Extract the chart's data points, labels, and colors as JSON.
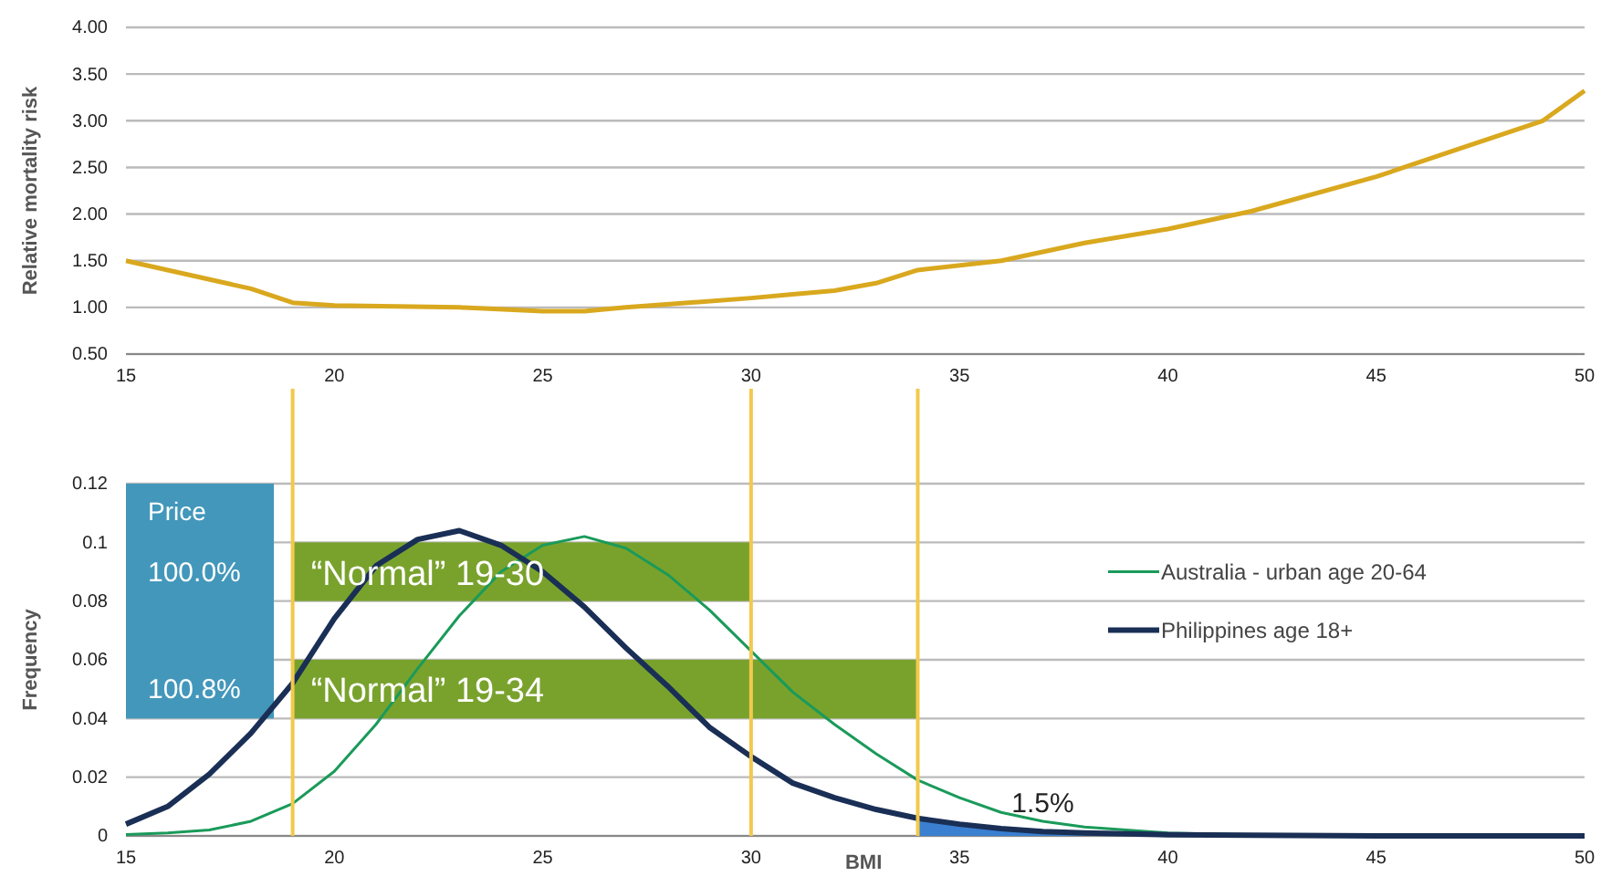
{
  "chart_data": [
    {
      "type": "line",
      "ylabel": "Relative mortality risk",
      "xlim": [
        15,
        50
      ],
      "xticks": [
        15,
        20,
        25,
        30,
        35,
        40,
        45,
        50
      ],
      "ylim": [
        0.5,
        4
      ],
      "yticks": [
        {
          "value": 0.5,
          "label": "0.50"
        },
        {
          "value": 1,
          "label": "1.00"
        },
        {
          "value": 1.5,
          "label": "1.50"
        },
        {
          "value": 2,
          "label": "2.00"
        },
        {
          "value": 2.5,
          "label": "2.50"
        },
        {
          "value": 3,
          "label": "3.00"
        },
        {
          "value": 3.5,
          "label": "3.50"
        },
        {
          "value": 4,
          "label": "4.00"
        }
      ],
      "grid": "y",
      "legend": false,
      "marker": "none",
      "series": [
        {
          "color": "#d9a81e",
          "x": [
            15,
            18,
            19,
            20,
            23,
            25,
            26,
            27,
            30,
            31,
            32,
            33,
            34,
            36,
            38,
            40,
            42,
            45,
            47,
            49,
            50
          ],
          "values": [
            1.5,
            1.2,
            1.05,
            1.02,
            1.0,
            0.96,
            0.96,
            1.0,
            1.1,
            1.14,
            1.18,
            1.26,
            1.4,
            1.5,
            1.69,
            1.84,
            2.03,
            2.4,
            2.7,
            3.0,
            3.32
          ]
        }
      ]
    },
    {
      "type": "line",
      "ylabel": "Frequency",
      "xlabel": "BMI",
      "xlim": [
        15,
        50
      ],
      "xticks": [
        15,
        20,
        25,
        30,
        35,
        40,
        45,
        50
      ],
      "ylim": [
        0,
        0.12
      ],
      "yticks": [
        0,
        0.02,
        0.04,
        0.06,
        0.08,
        0.1,
        0.12
      ],
      "grid": "y",
      "legend": "right",
      "marker": "none",
      "series": [
        {
          "type": "area",
          "color": "#3a7fd0",
          "x": [
            34,
            35,
            36,
            37,
            38,
            40,
            45,
            50
          ],
          "values": [
            0.006,
            0.004,
            0.0025,
            0.0015,
            0.001,
            0.0004,
            0,
            0
          ]
        },
        {
          "name": "Australia - urban age 20-64",
          "color": "#1a9a5a",
          "x": [
            15,
            16,
            17,
            18,
            19,
            20,
            21,
            22,
            23,
            24,
            25,
            26,
            27,
            28,
            29,
            30,
            31,
            32,
            33,
            34,
            35,
            36,
            37,
            38,
            39,
            40,
            42
          ],
          "values": [
            0.0005,
            0.001,
            0.002,
            0.005,
            0.011,
            0.022,
            0.038,
            0.057,
            0.075,
            0.09,
            0.099,
            0.102,
            0.098,
            0.089,
            0.077,
            0.063,
            0.049,
            0.038,
            0.028,
            0.019,
            0.013,
            0.008,
            0.005,
            0.003,
            0.002,
            0.001,
            0.0003
          ]
        },
        {
          "name": "Philippines age 18+",
          "color": "#1a2f55",
          "x": [
            15,
            16,
            17,
            18,
            19,
            20,
            21,
            22,
            23,
            24,
            25,
            26,
            27,
            28,
            29,
            30,
            31,
            32,
            33,
            34,
            35,
            36,
            37,
            38,
            40,
            45,
            50
          ],
          "values": [
            0.004,
            0.01,
            0.021,
            0.035,
            0.052,
            0.074,
            0.092,
            0.101,
            0.104,
            0.099,
            0.09,
            0.078,
            0.064,
            0.051,
            0.037,
            0.027,
            0.018,
            0.013,
            0.009,
            0.006,
            0.004,
            0.0025,
            0.0015,
            0.001,
            0.0004,
            0,
            0
          ]
        }
      ],
      "bands": [
        {
          "axis": "x",
          "from": 19,
          "to": 30,
          "label": "“Normal” 19-30",
          "color": "#79a22d"
        },
        {
          "axis": "x",
          "from": 19,
          "to": 34,
          "label": "“Normal” 19-34",
          "color": "#79a22d"
        }
      ],
      "ref_lines": [
        {
          "axis": "x",
          "value": 19,
          "color": "#f2c94c"
        },
        {
          "axis": "x",
          "value": 30,
          "color": "#f2c94c"
        },
        {
          "axis": "x",
          "value": 34,
          "color": "#f2c94c"
        }
      ],
      "annotations": [
        "Price",
        "100.0%",
        "100.8%",
        {
          "text": "1.5%",
          "x": 37,
          "y": 0.008
        }
      ]
    }
  ]
}
